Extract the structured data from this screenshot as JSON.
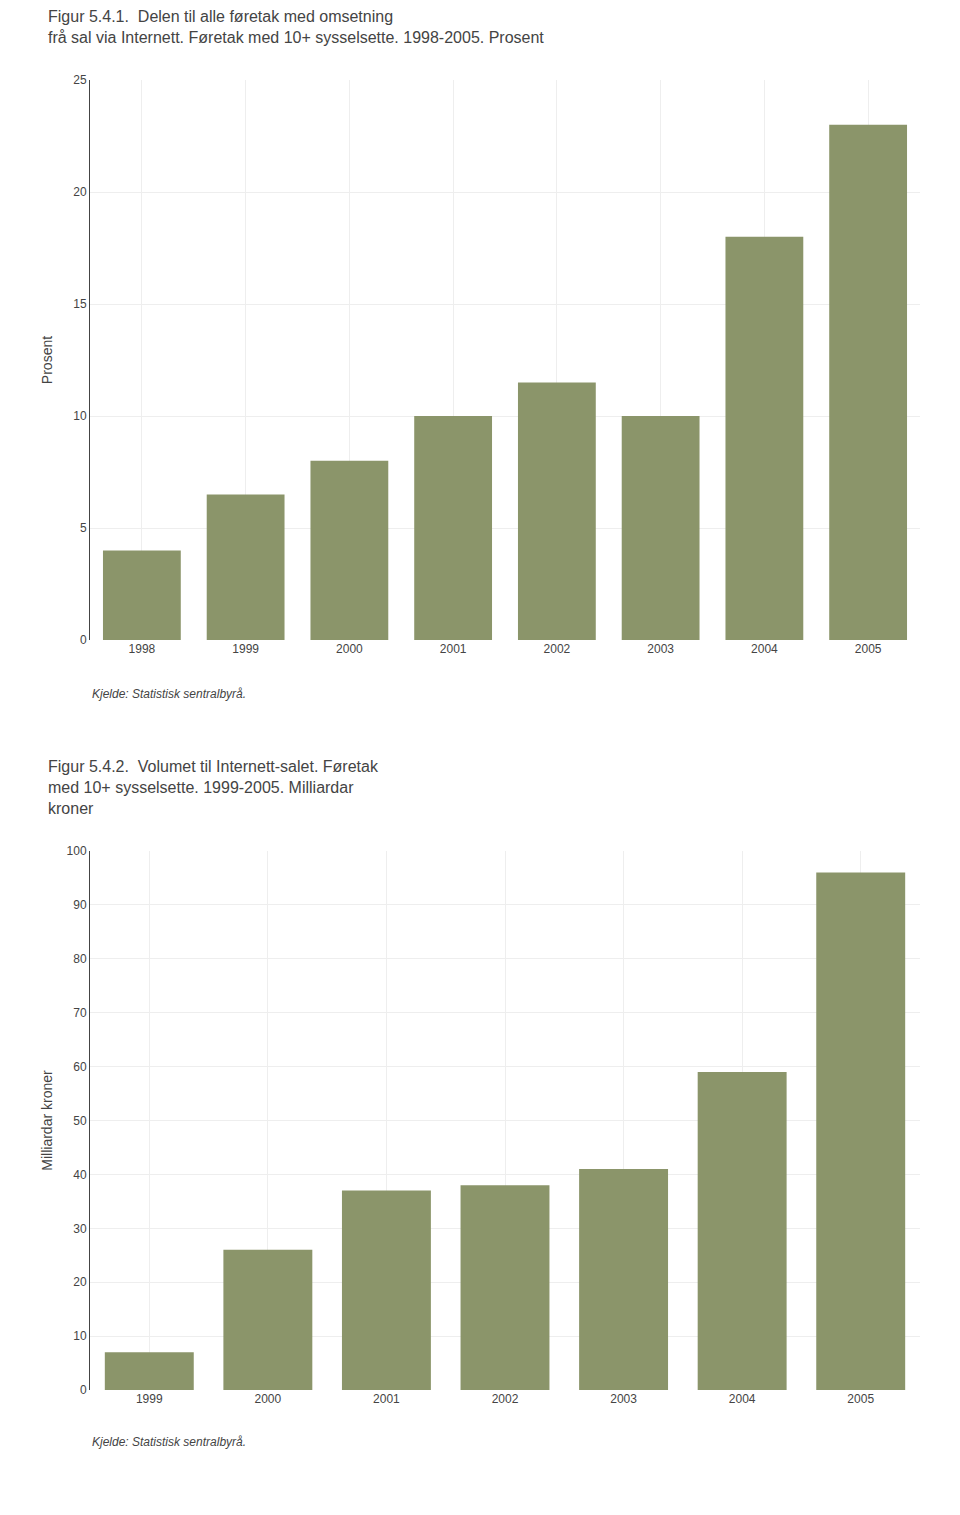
{
  "chart_data": [
    {
      "type": "bar",
      "title": "Figur 5.4.1.  Delen til alle føretak med omsetning\nfrå sal via Internett. Føretak med 10+ sysselsette. 1998-2005. Prosent",
      "y_label": "Prosent",
      "categories": [
        "1998",
        "1999",
        "2000",
        "2001",
        "2002",
        "2003",
        "2004",
        "2005"
      ],
      "values": [
        4.0,
        6.5,
        8.0,
        10.0,
        11.5,
        10.0,
        18.0,
        23.0
      ],
      "color": "#8B956A",
      "ylim": [
        0,
        25
      ],
      "yticks": [
        0,
        5,
        10,
        15,
        20,
        25
      ],
      "grid": true,
      "annotations": [
        "Kjelde: Statistisk sentralbyrå."
      ]
    },
    {
      "type": "bar",
      "title": "Figur 5.4.2.  Volumet til Internett-salet. Føretak\nmed 10+ sysselsette. 1999-2005. Milliardar\nkroner",
      "y_label": "Milliardar kroner",
      "categories": [
        "1999",
        "2000",
        "2001",
        "2002",
        "2003",
        "2004",
        "2005"
      ],
      "values": [
        7.0,
        26.0,
        37.0,
        38.0,
        41.0,
        59.0,
        96.0
      ],
      "color": "#8B956A",
      "ylim": [
        0,
        100
      ],
      "yticks": [
        0,
        10,
        20,
        30,
        40,
        50,
        60,
        70,
        80,
        90,
        100
      ],
      "grid": true,
      "annotations": [
        "Kjelde: Statistisk sentralbyrå."
      ]
    }
  ]
}
